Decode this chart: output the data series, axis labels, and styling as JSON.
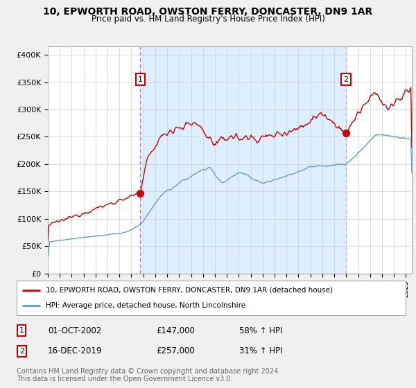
{
  "title": "10, EPWORTH ROAD, OWSTON FERRY, DONCASTER, DN9 1AR",
  "subtitle": "Price paid vs. HM Land Registry's House Price Index (HPI)",
  "ylabel_ticks": [
    "£0",
    "£50K",
    "£100K",
    "£150K",
    "£200K",
    "£250K",
    "£300K",
    "£350K",
    "£400K"
  ],
  "ytick_values": [
    0,
    50000,
    100000,
    150000,
    200000,
    250000,
    300000,
    350000,
    400000
  ],
  "ylim": [
    0,
    415000
  ],
  "xlim_start": 1995.0,
  "xlim_end": 2025.5,
  "red_line_color": "#cc0000",
  "blue_line_color": "#6699cc",
  "shade_color": "#ddeeff",
  "marker1_x": 2002.75,
  "marker1_y": 147000,
  "marker2_x": 2019.96,
  "marker2_y": 257000,
  "legend_label_red": "10, EPWORTH ROAD, OWSTON FERRY, DONCASTER, DN9 1AR (detached house)",
  "legend_label_blue": "HPI: Average price, detached house, North Lincolnshire",
  "table_row1": [
    "1",
    "01-OCT-2002",
    "£147,000",
    "58% ↑ HPI"
  ],
  "table_row2": [
    "2",
    "16-DEC-2019",
    "£257,000",
    "31% ↑ HPI"
  ],
  "footer": "Contains HM Land Registry data © Crown copyright and database right 2024.\nThis data is licensed under the Open Government Licence v3.0.",
  "background_color": "#f0f0f0",
  "plot_background": "#ffffff"
}
